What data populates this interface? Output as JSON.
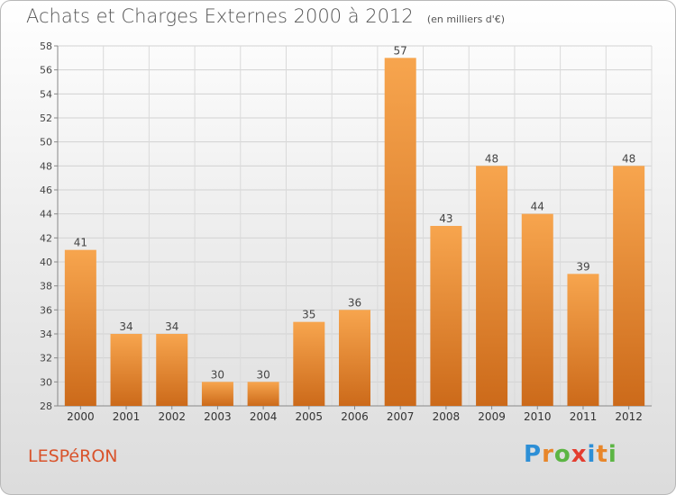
{
  "header": {
    "title": "Achats et Charges Externes 2000 à 2012",
    "subtitle": "(en milliers d'€)"
  },
  "footer": {
    "commune": "LESPéRON",
    "logo_letters": [
      "P",
      "r",
      "o",
      "x",
      "i",
      "t",
      "i"
    ],
    "logo_colors": [
      "#2d8fd6",
      "#e8862a",
      "#5cb544",
      "#e43d2f",
      "#2d8fd6",
      "#e8862a",
      "#5cb544"
    ]
  },
  "chart_data": {
    "type": "bar",
    "categories": [
      "2000",
      "2001",
      "2002",
      "2003",
      "2004",
      "2005",
      "2006",
      "2007",
      "2008",
      "2009",
      "2010",
      "2011",
      "2012"
    ],
    "values": [
      41,
      34,
      34,
      30,
      30,
      35,
      36,
      57,
      43,
      48,
      44,
      39,
      48
    ],
    "title": "Achats et Charges Externes 2000 à 2012",
    "ylim": [
      28,
      58
    ],
    "yticks": [
      28,
      30,
      32,
      34,
      36,
      38,
      40,
      42,
      44,
      46,
      48,
      50,
      52,
      54,
      56,
      58
    ],
    "grid": true,
    "bar_color_top": "#f7a54e",
    "bar_color_bottom": "#cc6a1a"
  }
}
